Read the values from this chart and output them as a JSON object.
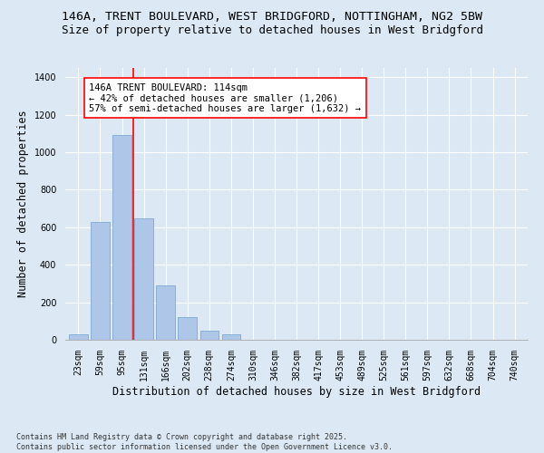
{
  "title_line1": "146A, TRENT BOULEVARD, WEST BRIDGFORD, NOTTINGHAM, NG2 5BW",
  "title_line2": "Size of property relative to detached houses in West Bridgford",
  "xlabel": "Distribution of detached houses by size in West Bridgford",
  "ylabel": "Number of detached properties",
  "categories": [
    "23sqm",
    "59sqm",
    "95sqm",
    "131sqm",
    "166sqm",
    "202sqm",
    "238sqm",
    "274sqm",
    "310sqm",
    "346sqm",
    "382sqm",
    "417sqm",
    "453sqm",
    "489sqm",
    "525sqm",
    "561sqm",
    "597sqm",
    "632sqm",
    "668sqm",
    "704sqm",
    "740sqm"
  ],
  "values": [
    30,
    630,
    1090,
    650,
    290,
    120,
    50,
    30,
    0,
    0,
    0,
    0,
    0,
    0,
    0,
    0,
    0,
    0,
    0,
    0,
    0
  ],
  "bar_color": "#aec6e8",
  "bar_edge_color": "#6fa0cc",
  "vline_color": "red",
  "vline_x": 2.5,
  "annotation_text": "146A TRENT BOULEVARD: 114sqm\n← 42% of detached houses are smaller (1,206)\n57% of semi-detached houses are larger (1,632) →",
  "annotation_box_color": "white",
  "annotation_box_edge": "red",
  "ylim": [
    0,
    1450
  ],
  "yticks": [
    0,
    200,
    400,
    600,
    800,
    1000,
    1200,
    1400
  ],
  "background_color": "#dce9f5",
  "plot_bg_color": "#dce9f5",
  "footer": "Contains HM Land Registry data © Crown copyright and database right 2025.\nContains public sector information licensed under the Open Government Licence v3.0.",
  "title_fontsize": 9.5,
  "subtitle_fontsize": 9,
  "axis_label_fontsize": 8.5,
  "tick_fontsize": 7,
  "annotation_fontsize": 7.5,
  "footer_fontsize": 6
}
